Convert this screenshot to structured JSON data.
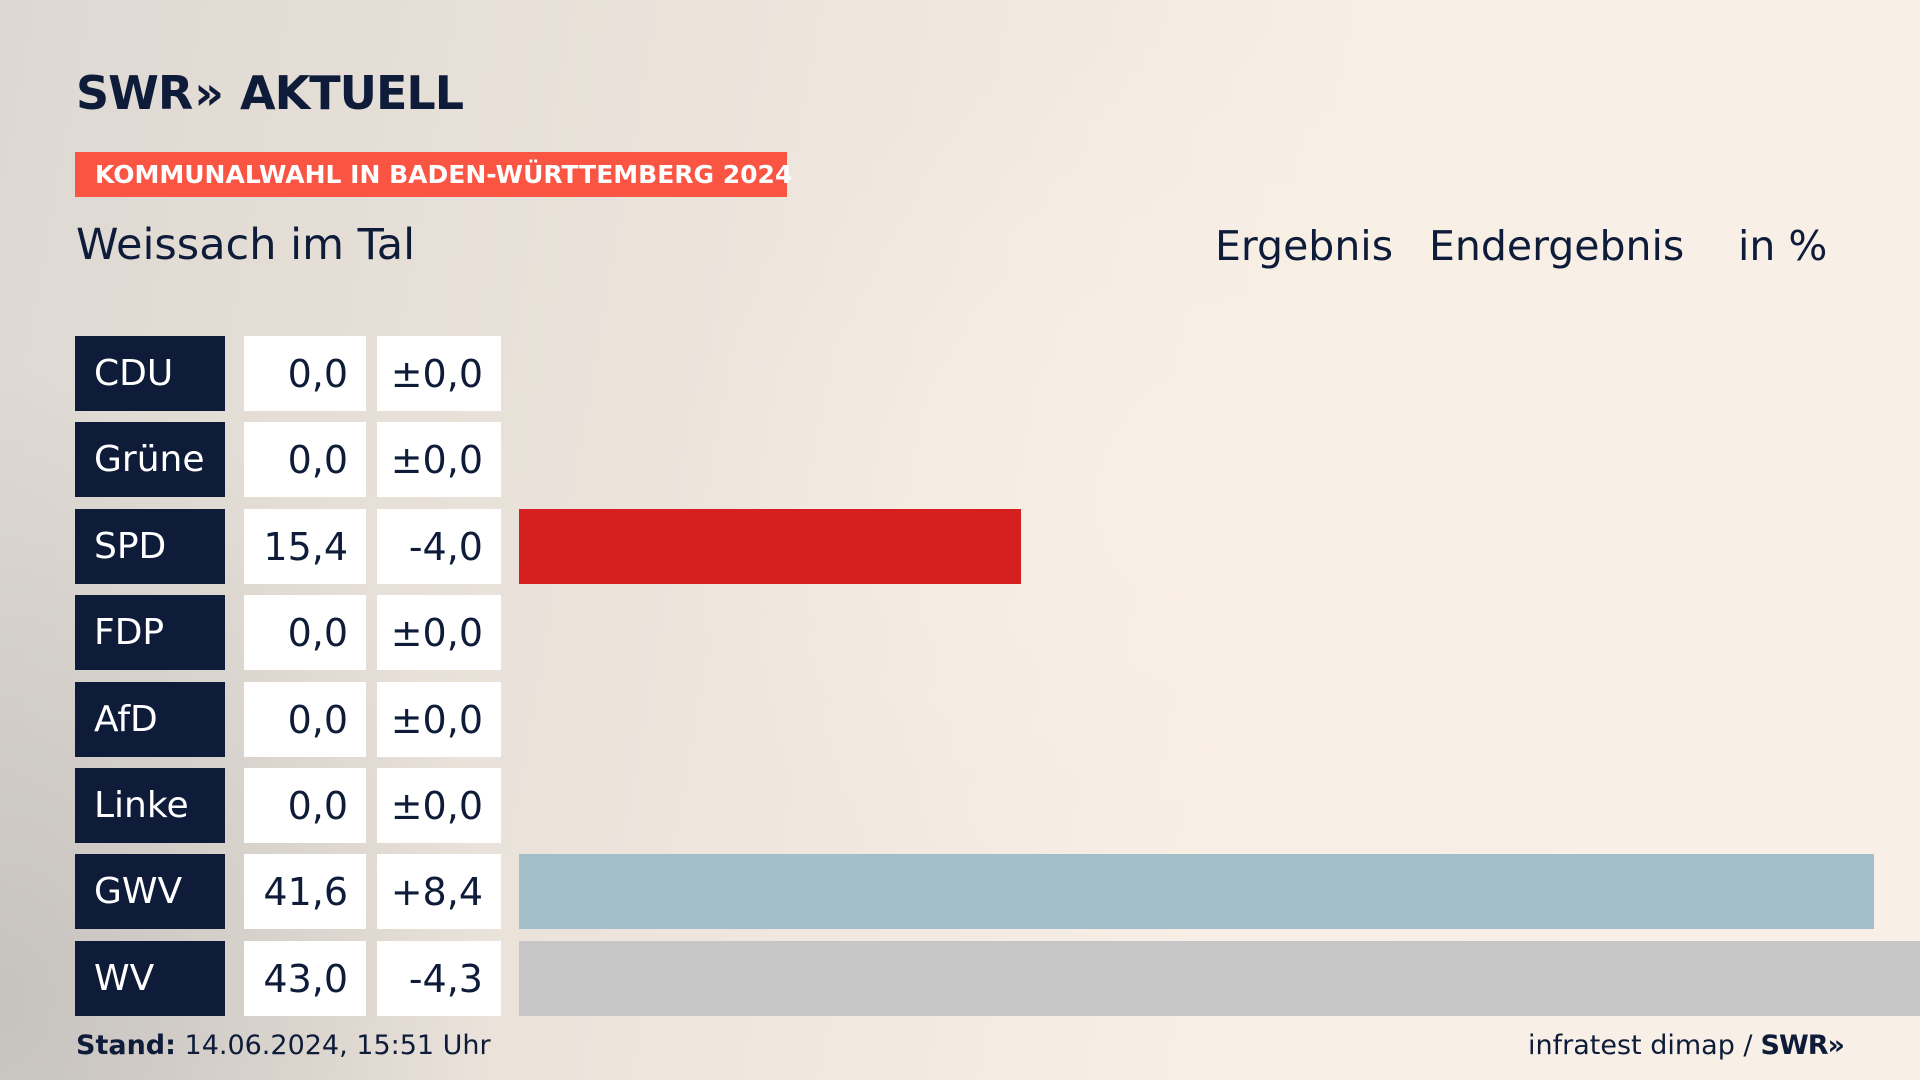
{
  "brand": {
    "logo_left": "SWR",
    "logo_chevrons": "»",
    "logo_right": "AKTUELL"
  },
  "banner": "KOMMUNALWAHL IN BADEN-WÜRTTEMBERG 2024",
  "place": "Weissach im Tal",
  "header": {
    "ergebnis": "Ergebnis",
    "endergebnis": "Endergebnis",
    "unit": "in %"
  },
  "colors": {
    "party_label_bg": "#0e1c3a",
    "banner_bg": "#fa5443",
    "SPD": "#d61f1f",
    "GWV": "#a2bec8",
    "WV": "#c6c6c6"
  },
  "chart_data": {
    "type": "bar",
    "orientation": "horizontal",
    "categories": [
      "CDU",
      "Grüne",
      "SPD",
      "FDP",
      "AfD",
      "Linke",
      "GWV",
      "WV"
    ],
    "values": [
      0.0,
      0.0,
      15.4,
      0.0,
      0.0,
      0.0,
      41.6,
      43.0
    ],
    "value_labels": [
      "0,0",
      "0,0",
      "15,4",
      "0,0",
      "0,0",
      "0,0",
      "41,6",
      "43,0"
    ],
    "diff_labels": [
      "±0,0",
      "±0,0",
      "-4,0",
      "±0,0",
      "±0,0",
      "±0,0",
      "+8,4",
      "-4,3"
    ],
    "bar_colors": [
      "#000000",
      "#46962b",
      "#d61f1f",
      "#ffd600",
      "#009ee0",
      "#be3075",
      "#a2bec8",
      "#c6c6c6"
    ],
    "xlim": [
      0,
      43.0
    ],
    "grid": false
  },
  "footer": {
    "stand_label": "Stand:",
    "stand_value": "14.06.2024, 15:51 Uhr",
    "source": "infratest dimap /",
    "source_brand": "SWR»"
  }
}
